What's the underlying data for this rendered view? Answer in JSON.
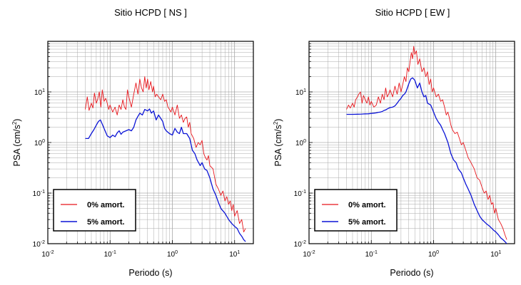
{
  "chart_data": [
    {
      "type": "line",
      "title": "Sitio HCPD [ NS ]",
      "xlabel": "Periodo (s)",
      "ylabel_main": "PSA (cm/s",
      "ylabel_sup": "2",
      "ylabel_end": ")",
      "xscale": "log",
      "yscale": "log",
      "xlim": [
        0.01,
        20
      ],
      "ylim": [
        0.01,
        100
      ],
      "grid": true,
      "legend_position": "bottom-left",
      "x_ticks": [
        {
          "base": "10",
          "exp": "-2"
        },
        {
          "base": "10",
          "exp": "-1"
        },
        {
          "base": "10",
          "exp": "0"
        },
        {
          "base": "10",
          "exp": "1"
        }
      ],
      "y_ticks": [
        {
          "base": "10",
          "exp": "-2"
        },
        {
          "base": "10",
          "exp": "-1"
        },
        {
          "base": "10",
          "exp": "0"
        },
        {
          "base": "10",
          "exp": "1"
        }
      ],
      "series": [
        {
          "name": "0% amort.",
          "color": "#e8151b",
          "x": [
            0.04,
            0.043,
            0.046,
            0.05,
            0.053,
            0.056,
            0.06,
            0.063,
            0.067,
            0.071,
            0.075,
            0.08,
            0.085,
            0.09,
            0.095,
            0.1,
            0.11,
            0.12,
            0.13,
            0.14,
            0.15,
            0.16,
            0.17,
            0.18,
            0.19,
            0.2,
            0.22,
            0.24,
            0.26,
            0.28,
            0.3,
            0.32,
            0.34,
            0.36,
            0.38,
            0.4,
            0.42,
            0.45,
            0.48,
            0.5,
            0.53,
            0.56,
            0.6,
            0.65,
            0.7,
            0.75,
            0.8,
            0.85,
            0.9,
            0.95,
            1.0,
            1.1,
            1.2,
            1.3,
            1.4,
            1.5,
            1.6,
            1.7,
            1.8,
            1.9,
            2.0,
            2.2,
            2.4,
            2.6,
            2.8,
            3.0,
            3.2,
            3.4,
            3.6,
            3.8,
            4.0,
            4.5,
            5.0,
            5.5,
            6.0,
            6.5,
            7.0,
            7.5,
            8.0,
            8.5,
            9.0,
            9.5,
            10,
            11,
            12,
            13,
            14,
            15
          ],
          "y": [
            4.5,
            8.0,
            4.3,
            6.0,
            4.8,
            9.5,
            6.0,
            7.0,
            10.0,
            5.0,
            11.0,
            6.5,
            7.5,
            6.0,
            4.5,
            5.5,
            4.0,
            5.0,
            3.5,
            5.5,
            4.5,
            7.0,
            5.0,
            4.5,
            11.0,
            8.0,
            5.0,
            9.0,
            15.0,
            9.0,
            18.0,
            12.0,
            10.0,
            20.0,
            12.0,
            18.0,
            11.0,
            16.0,
            10.0,
            13.0,
            8.0,
            9.0,
            8.0,
            7.0,
            9.0,
            6.5,
            7.0,
            5.0,
            4.5,
            4.0,
            5.0,
            3.5,
            5.5,
            3.0,
            3.5,
            2.5,
            3.0,
            3.2,
            2.0,
            2.5,
            1.5,
            1.2,
            0.8,
            1.0,
            0.9,
            1.1,
            0.6,
            0.5,
            0.45,
            0.55,
            0.35,
            0.3,
            0.15,
            0.12,
            0.09,
            0.11,
            0.07,
            0.085,
            0.06,
            0.07,
            0.045,
            0.06,
            0.035,
            0.045,
            0.025,
            0.03,
            0.017,
            0.02
          ]
        },
        {
          "name": "5% amort.",
          "color": "#0b14d6",
          "x": [
            0.04,
            0.045,
            0.05,
            0.055,
            0.06,
            0.065,
            0.07,
            0.075,
            0.08,
            0.09,
            0.1,
            0.11,
            0.12,
            0.13,
            0.14,
            0.15,
            0.16,
            0.18,
            0.2,
            0.22,
            0.24,
            0.26,
            0.28,
            0.3,
            0.33,
            0.36,
            0.4,
            0.43,
            0.46,
            0.5,
            0.55,
            0.6,
            0.65,
            0.7,
            0.75,
            0.8,
            0.9,
            1.0,
            1.1,
            1.2,
            1.3,
            1.4,
            1.5,
            1.7,
            1.9,
            2.1,
            2.3,
            2.5,
            2.8,
            3.0,
            3.3,
            3.6,
            4.0,
            4.5,
            5.0,
            5.5,
            6.0,
            7.0,
            8.0,
            9.0,
            10,
            11,
            12,
            13,
            14,
            15
          ],
          "y": [
            1.2,
            1.2,
            1.5,
            1.8,
            2.2,
            2.6,
            2.8,
            2.3,
            1.9,
            1.35,
            1.25,
            1.4,
            1.3,
            1.55,
            1.7,
            1.45,
            1.6,
            1.7,
            1.8,
            1.7,
            2.0,
            2.8,
            3.3,
            3.8,
            3.5,
            4.5,
            4.2,
            4.6,
            3.8,
            4.2,
            2.8,
            3.5,
            3.0,
            2.6,
            1.9,
            1.7,
            1.5,
            1.4,
            1.9,
            1.6,
            1.5,
            2.0,
            1.5,
            1.5,
            1.2,
            0.7,
            0.6,
            0.45,
            0.35,
            0.4,
            0.3,
            0.28,
            0.2,
            0.12,
            0.09,
            0.065,
            0.05,
            0.04,
            0.03,
            0.025,
            0.022,
            0.02,
            0.016,
            0.014,
            0.012,
            0.011
          ]
        }
      ]
    },
    {
      "type": "line",
      "title": "Sitio HCPD [ EW ]",
      "xlabel": "Periodo (s)",
      "ylabel_main": "PSA (cm/s",
      "ylabel_sup": "2",
      "ylabel_end": ")",
      "xscale": "log",
      "yscale": "log",
      "xlim": [
        0.01,
        20
      ],
      "ylim": [
        0.01,
        100
      ],
      "grid": true,
      "legend_position": "bottom-left",
      "x_ticks": [
        {
          "base": "10",
          "exp": "-2"
        },
        {
          "base": "10",
          "exp": "-1"
        },
        {
          "base": "10",
          "exp": "0"
        },
        {
          "base": "10",
          "exp": "1"
        }
      ],
      "y_ticks": [
        {
          "base": "10",
          "exp": "-2"
        },
        {
          "base": "10",
          "exp": "-1"
        },
        {
          "base": "10",
          "exp": "0"
        },
        {
          "base": "10",
          "exp": "1"
        }
      ],
      "series": [
        {
          "name": "0% amort.",
          "color": "#e8151b",
          "x": [
            0.04,
            0.043,
            0.046,
            0.05,
            0.053,
            0.056,
            0.06,
            0.063,
            0.067,
            0.071,
            0.075,
            0.08,
            0.085,
            0.09,
            0.095,
            0.1,
            0.11,
            0.12,
            0.13,
            0.14,
            0.15,
            0.16,
            0.17,
            0.18,
            0.19,
            0.2,
            0.22,
            0.24,
            0.26,
            0.28,
            0.3,
            0.32,
            0.34,
            0.36,
            0.38,
            0.4,
            0.42,
            0.44,
            0.46,
            0.48,
            0.5,
            0.53,
            0.56,
            0.6,
            0.65,
            0.7,
            0.75,
            0.8,
            0.85,
            0.9,
            0.95,
            1.0,
            1.1,
            1.2,
            1.3,
            1.4,
            1.5,
            1.6,
            1.7,
            1.8,
            1.9,
            2.0,
            2.2,
            2.4,
            2.6,
            2.8,
            3.0,
            3.3,
            3.6,
            4.0,
            4.5,
            5.0,
            5.5,
            6.0,
            6.5,
            7.0,
            7.5,
            8.0,
            8.5,
            9.0,
            9.5,
            10,
            11,
            12,
            13,
            14,
            15
          ],
          "y": [
            4.5,
            5.5,
            4.8,
            6.0,
            5.0,
            7.0,
            8.0,
            9.0,
            10.0,
            6.0,
            8.5,
            7.0,
            6.0,
            8.0,
            5.5,
            6.5,
            5.0,
            5.5,
            8.0,
            6.0,
            9.0,
            7.0,
            12.0,
            8.0,
            9.0,
            11.0,
            8.0,
            13.0,
            9.0,
            15.0,
            10.0,
            14.0,
            20.0,
            16.0,
            30.0,
            25.0,
            40.0,
            60.0,
            45.0,
            80.0,
            55.0,
            65.0,
            35.0,
            45.0,
            25.0,
            30.0,
            20.0,
            25.0,
            14.0,
            18.0,
            10.0,
            12.0,
            8.0,
            9.0,
            6.5,
            7.0,
            5.0,
            3.5,
            4.0,
            3.0,
            2.2,
            1.8,
            1.5,
            1.6,
            1.2,
            0.9,
            1.0,
            0.7,
            0.5,
            0.4,
            0.3,
            0.2,
            0.18,
            0.13,
            0.1,
            0.11,
            0.075,
            0.09,
            0.06,
            0.065,
            0.04,
            0.05,
            0.03,
            0.025,
            0.02,
            0.015,
            0.012
          ]
        },
        {
          "name": "5% amort.",
          "color": "#0b14d6",
          "x": [
            0.04,
            0.05,
            0.06,
            0.07,
            0.08,
            0.09,
            0.1,
            0.11,
            0.12,
            0.13,
            0.14,
            0.15,
            0.16,
            0.17,
            0.18,
            0.2,
            0.22,
            0.24,
            0.26,
            0.28,
            0.3,
            0.32,
            0.34,
            0.36,
            0.38,
            0.4,
            0.43,
            0.46,
            0.5,
            0.55,
            0.6,
            0.65,
            0.7,
            0.75,
            0.8,
            0.9,
            1.0,
            1.1,
            1.2,
            1.3,
            1.4,
            1.5,
            1.7,
            1.9,
            2.1,
            2.3,
            2.5,
            2.8,
            3.0,
            3.3,
            3.6,
            4.0,
            4.5,
            5.0,
            5.5,
            6.0,
            7.0,
            8.0,
            9.0,
            10,
            11,
            12,
            13,
            14,
            15
          ],
          "y": [
            3.6,
            3.6,
            3.62,
            3.65,
            3.68,
            3.7,
            3.75,
            3.8,
            3.85,
            3.95,
            4.0,
            4.1,
            4.3,
            4.4,
            4.6,
            4.9,
            5.0,
            5.3,
            6.0,
            6.8,
            7.5,
            8.5,
            9.0,
            10.0,
            12.0,
            14.5,
            18.0,
            19.0,
            17.0,
            12.0,
            15.0,
            10.0,
            8.0,
            8.5,
            6.0,
            5.5,
            4.0,
            3.0,
            2.5,
            2.2,
            1.8,
            1.5,
            1.0,
            0.6,
            0.45,
            0.4,
            0.3,
            0.25,
            0.2,
            0.15,
            0.12,
            0.09,
            0.06,
            0.045,
            0.035,
            0.03,
            0.025,
            0.022,
            0.019,
            0.017,
            0.015,
            0.013,
            0.012,
            0.011,
            0.01
          ]
        }
      ]
    }
  ]
}
